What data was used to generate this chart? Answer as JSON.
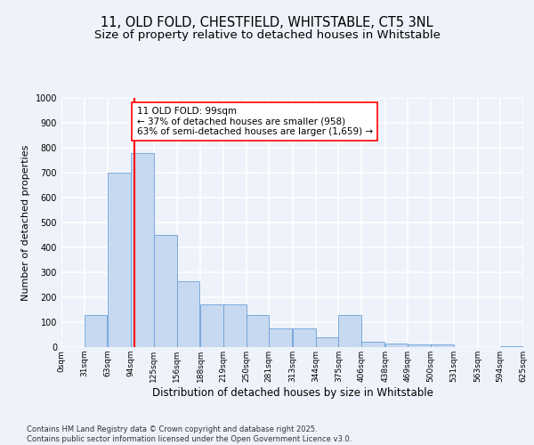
{
  "title_line1": "11, OLD FOLD, CHESTFIELD, WHITSTABLE, CT5 3NL",
  "title_line2": "Size of property relative to detached houses in Whitstable",
  "xlabel": "Distribution of detached houses by size in Whitstable",
  "ylabel": "Number of detached properties",
  "bin_labels": [
    "0sqm",
    "31sqm",
    "63sqm",
    "94sqm",
    "125sqm",
    "156sqm",
    "188sqm",
    "219sqm",
    "250sqm",
    "281sqm",
    "313sqm",
    "344sqm",
    "375sqm",
    "406sqm",
    "438sqm",
    "469sqm",
    "500sqm",
    "531sqm",
    "563sqm",
    "594sqm",
    "625sqm"
  ],
  "bin_edges": [
    0,
    31,
    63,
    94,
    125,
    156,
    188,
    219,
    250,
    281,
    313,
    344,
    375,
    406,
    438,
    469,
    500,
    531,
    563,
    594,
    625
  ],
  "bar_heights": [
    0,
    130,
    700,
    780,
    450,
    265,
    170,
    170,
    130,
    75,
    75,
    40,
    130,
    20,
    15,
    10,
    10,
    0,
    0,
    5,
    0
  ],
  "bar_color": "#c7d9f0",
  "bar_edge_color": "#6a9fd8",
  "vline_x": 99,
  "vline_color": "red",
  "annotation_text": "11 OLD FOLD: 99sqm\n← 37% of detached houses are smaller (958)\n63% of semi-detached houses are larger (1,659) →",
  "annotation_box_color": "white",
  "annotation_box_edgecolor": "red",
  "ylim": [
    0,
    1000
  ],
  "yticks": [
    0,
    100,
    200,
    300,
    400,
    500,
    600,
    700,
    800,
    900,
    1000
  ],
  "footer_text": "Contains HM Land Registry data © Crown copyright and database right 2025.\nContains public sector information licensed under the Open Government Licence v3.0.",
  "background_color": "#eef2fa",
  "grid_color": "#ffffff",
  "title_fontsize": 10.5,
  "subtitle_fontsize": 9.5,
  "ann_fontsize": 7.5,
  "ylabel_fontsize": 8,
  "xlabel_fontsize": 8.5,
  "tick_fontsize": 6.5,
  "footer_fontsize": 6.0
}
